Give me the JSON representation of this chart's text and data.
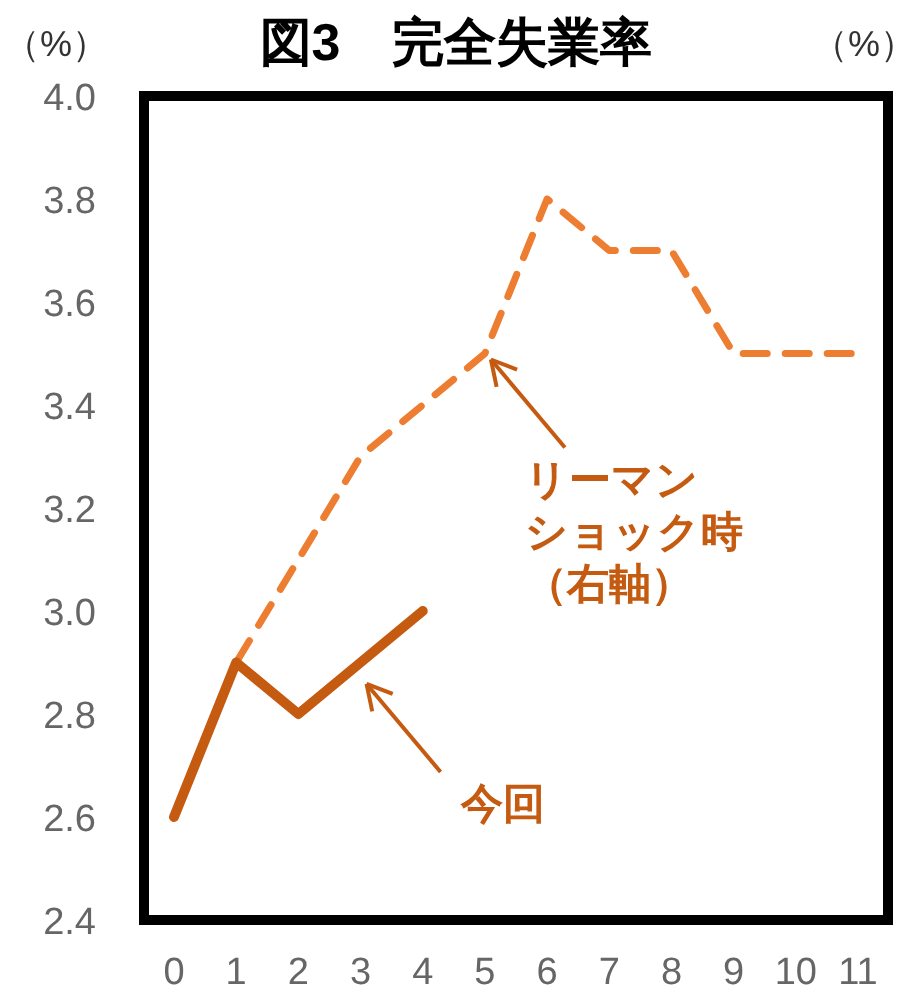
{
  "chart_data": {
    "type": "line",
    "title": "図3　完全失業率",
    "ylabel": "（%）",
    "y2label": "（%）",
    "categories": [
      "0",
      "1",
      "2",
      "3",
      "4",
      "5",
      "6",
      "7",
      "8",
      "9",
      "10",
      "11"
    ],
    "series": [
      {
        "color": "#ed7d31",
        "line_style": "dashed",
        "values": [
          2.6,
          2.9,
          3.1,
          3.3,
          3.4,
          3.5,
          3.8,
          3.7,
          3.7,
          3.5,
          3.5,
          3.5
        ]
      },
      {
        "color": "#c55a11",
        "line_style": "solid",
        "values": [
          2.6,
          2.9,
          2.8,
          2.9,
          3.0,
          null,
          null,
          null,
          null,
          null,
          null,
          null
        ]
      }
    ],
    "ylim": [
      2.4,
      4.0
    ],
    "yticks": [
      {
        "value": 2.4,
        "label": "2.4"
      },
      {
        "value": 2.6,
        "label": "2.6"
      },
      {
        "value": 2.8,
        "label": "2.8"
      },
      {
        "value": 3.0,
        "label": "3.0"
      },
      {
        "value": 3.2,
        "label": "3.2"
      },
      {
        "value": 3.4,
        "label": "3.4"
      },
      {
        "value": 3.6,
        "label": "3.6"
      },
      {
        "value": 3.8,
        "label": "3.8"
      },
      {
        "value": 4.0,
        "label": "4.0"
      }
    ],
    "grid": false,
    "marker": "none",
    "annotations": [
      {
        "text": "リーマンショック時（右軸）",
        "x": "5",
        "y": 3.5
      },
      {
        "text": "今回",
        "x": "3",
        "y": 2.87
      }
    ]
  }
}
